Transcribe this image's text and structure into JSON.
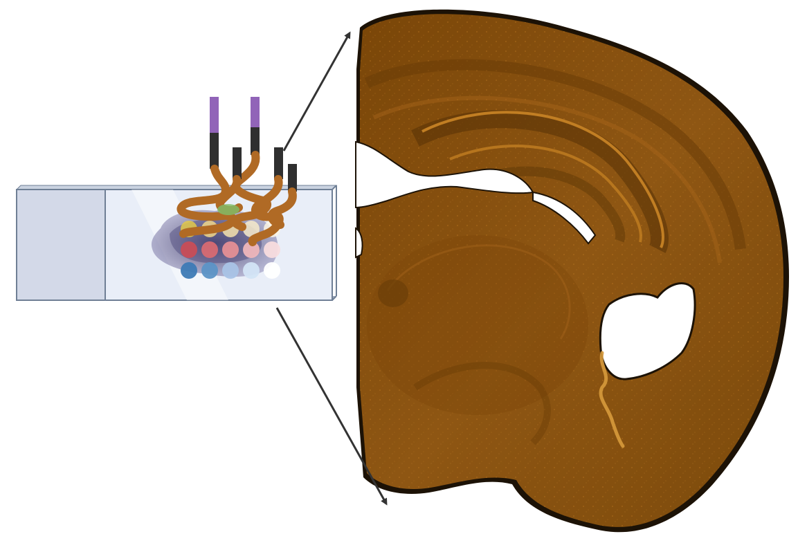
{
  "figure": {
    "panels": [
      "slide-with-probes",
      "brain-section"
    ],
    "colors": {
      "slide_fill": "#e9eef8",
      "slide_label_fill": "#d3d9e8",
      "slide_edge": "#6f7f95",
      "probe_tip": "#9164b8",
      "probe_shaft": "#2f2f2f",
      "probe_wire": "#b06a25",
      "tissue_brown": "#8c5410",
      "tissue_dark": "#5e3605",
      "arrow": "#333333",
      "spot_rows": [
        [
          "#e3c94a",
          "#f0d78a",
          "#f4e2ad",
          "#f7ebcb",
          "#fbf4e4"
        ],
        [
          "#c84d57",
          "#d76a72",
          "#e48f95",
          "#efb6ba",
          "#f8dcde"
        ],
        [
          "#3d7ab5",
          "#5c93c6",
          "#a9c3e6",
          "#d3e4f6",
          "#ffffff"
        ]
      ]
    }
  }
}
